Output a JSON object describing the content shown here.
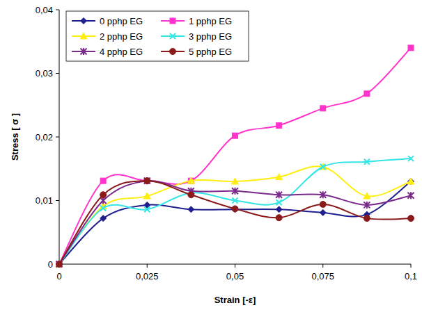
{
  "chart_data": {
    "type": "line",
    "x_label": "Strain [-ε]",
    "y_label": "Stress [ σ ]",
    "x": [
      0,
      0.0125,
      0.025,
      0.0375,
      0.05,
      0.0625,
      0.075,
      0.0875,
      0.1
    ],
    "xlim": [
      0,
      0.1
    ],
    "xticks": [
      0,
      {
        "value": 0.025,
        "label": "0,025"
      },
      {
        "value": 0.05,
        "label": "0,05"
      },
      {
        "value": 0.075,
        "label": "0,075"
      },
      {
        "value": 0.1,
        "label": "0,1"
      }
    ],
    "ylim": [
      0,
      0.04
    ],
    "yticks": [
      0,
      {
        "value": 0.01,
        "label": "0,01"
      },
      {
        "value": 0.02,
        "label": "0,02"
      },
      {
        "value": 0.03,
        "label": "0,03"
      },
      {
        "value": 0.04,
        "label": "0,04"
      }
    ],
    "grid": false,
    "legend": "upper left",
    "series": [
      {
        "name": "0 pphp EG",
        "color": "#1f1f8f",
        "marker": "diamond",
        "values": [
          0,
          0.0072,
          0.0093,
          0.0086,
          0.0086,
          0.0086,
          0.0081,
          0.0078,
          0.013
        ]
      },
      {
        "name": "1 pphp EG",
        "color": "#ff33cc",
        "marker": "square",
        "values": [
          0,
          0.0131,
          0.0131,
          0.0131,
          0.0202,
          0.0218,
          0.0245,
          0.0268,
          0.034
        ]
      },
      {
        "name": "2 pphp EG",
        "color": "#ffee11",
        "marker": "triangle",
        "values": [
          0,
          0.0091,
          0.0107,
          0.0131,
          0.013,
          0.0137,
          0.0153,
          0.0107,
          0.013
        ]
      },
      {
        "name": "3 pphp EG",
        "color": "#33e6e6",
        "marker": "x",
        "values": [
          0,
          0.0088,
          0.0086,
          0.0112,
          0.01,
          0.0097,
          0.0153,
          0.0161,
          0.0166
        ]
      },
      {
        "name": "4 pphp EG",
        "color": "#7a2a8a",
        "marker": "star",
        "values": [
          0,
          0.01,
          0.0131,
          0.0115,
          0.0115,
          0.0109,
          0.0109,
          0.0093,
          0.0108
        ]
      },
      {
        "name": "5 pphp EG",
        "color": "#8b1a1a",
        "marker": "circle",
        "values": [
          0,
          0.0109,
          0.0131,
          0.0109,
          0.0087,
          0.0073,
          0.0094,
          0.0072,
          0.0072
        ]
      }
    ]
  }
}
